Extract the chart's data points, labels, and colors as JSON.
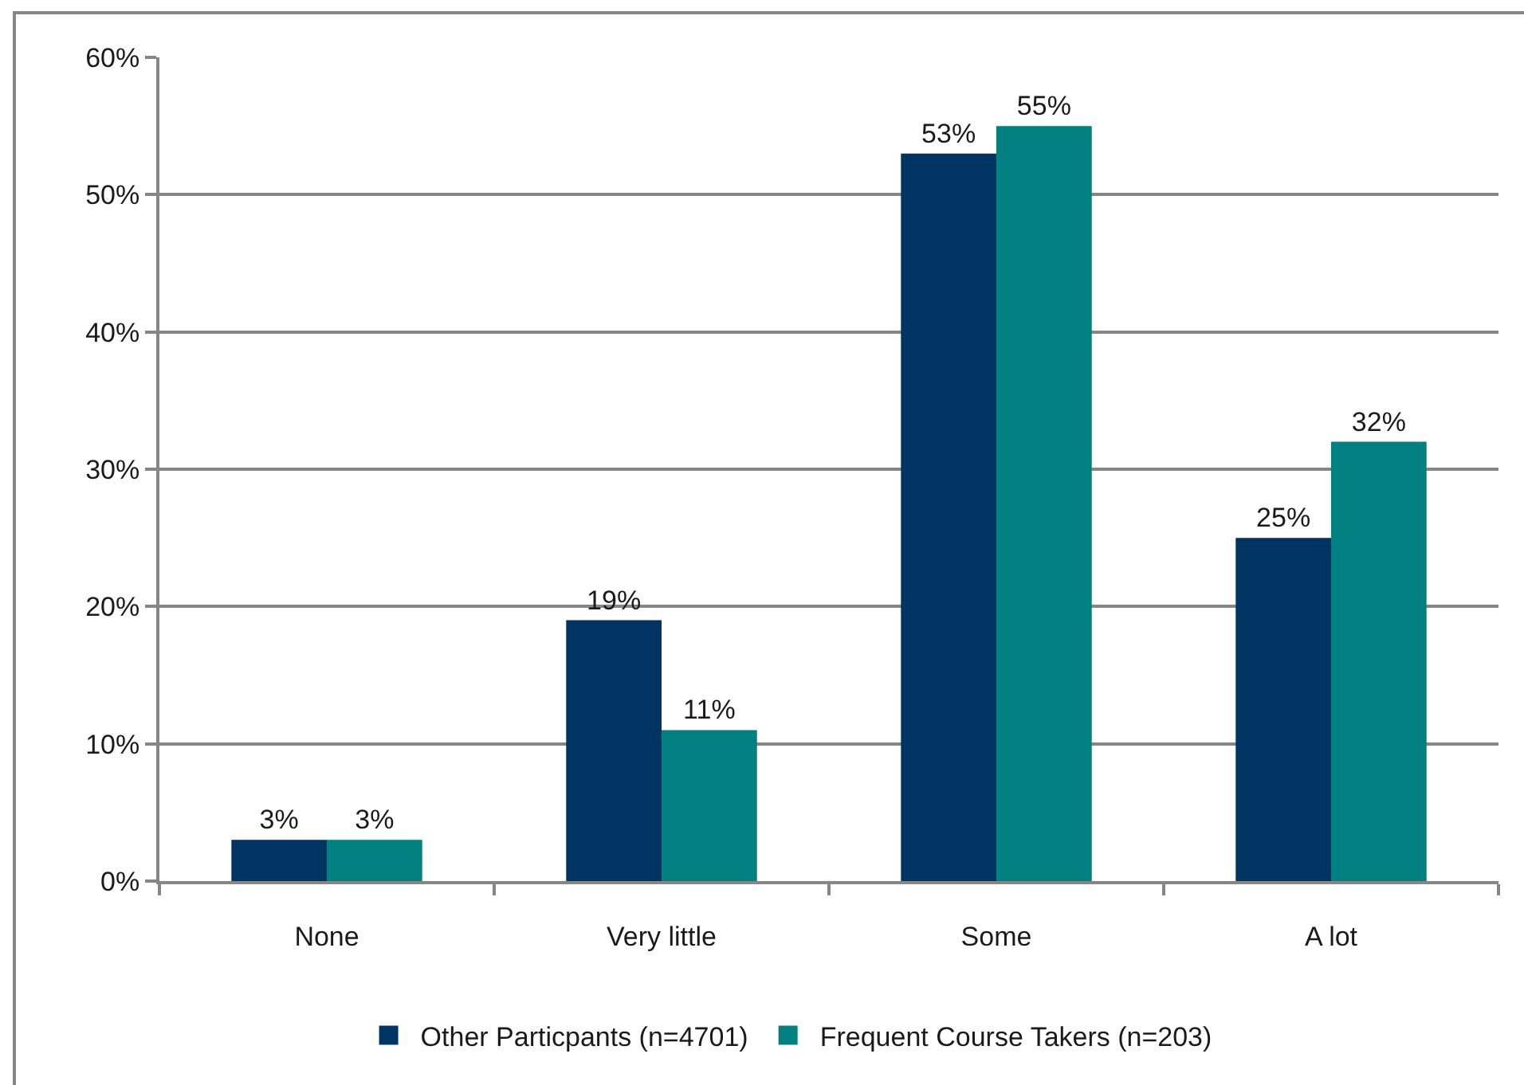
{
  "chart_data": {
    "type": "bar",
    "categories": [
      "None",
      "Very little",
      "Some",
      "A lot"
    ],
    "series": [
      {
        "name": "Other Particpants (n=4701)",
        "color": "#003462",
        "values": [
          3,
          19,
          53,
          25
        ],
        "value_labels": [
          "3%",
          "19%",
          "53%",
          "25%"
        ]
      },
      {
        "name": "Frequent Course Takers (n=203)",
        "color": "#008080",
        "values": [
          3,
          11,
          55,
          32
        ],
        "value_labels": [
          "3%",
          "11%",
          "55%",
          "32%"
        ]
      }
    ],
    "ylim": [
      0,
      60
    ],
    "yticks": [
      {
        "value": 0,
        "label": "0%"
      },
      {
        "value": 10,
        "label": "10%"
      },
      {
        "value": 20,
        "label": "20%"
      },
      {
        "value": 30,
        "label": "30%"
      },
      {
        "value": 40,
        "label": "40%"
      },
      {
        "value": 50,
        "label": "50%"
      },
      {
        "value": 60,
        "label": "60%"
      }
    ],
    "grid": "y",
    "legend": "bottom"
  }
}
